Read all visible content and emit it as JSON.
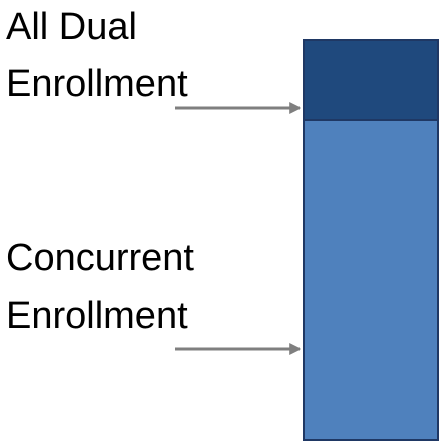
{
  "labels": [
    {
      "lines": [
        "All Dual",
        "Enrollment"
      ]
    },
    {
      "lines": [
        "Concurrent",
        "Enrollment"
      ]
    }
  ]
}
